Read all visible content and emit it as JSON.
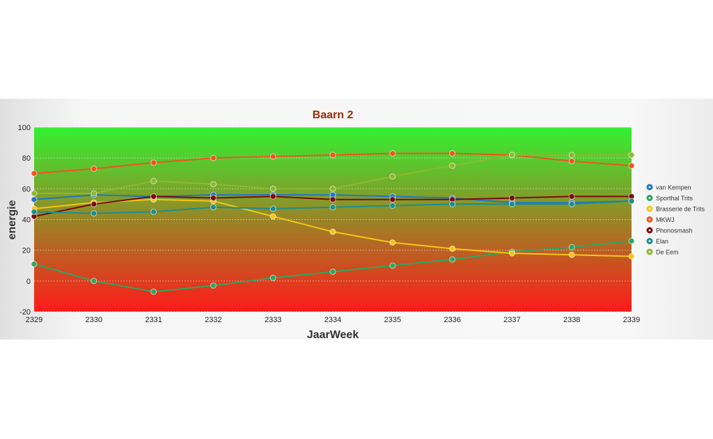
{
  "chart_data": {
    "type": "line",
    "title": "Baarn 2",
    "xlabel": "JaarWeek",
    "ylabel": "energie",
    "ylim": [
      -20,
      100
    ],
    "yticks": [
      -20,
      0,
      20,
      40,
      60,
      80,
      100
    ],
    "categories": [
      "2329",
      "2330",
      "2331",
      "2332",
      "2333",
      "2334",
      "2335",
      "2336",
      "2337",
      "2338",
      "2339"
    ],
    "background": {
      "top": "#33f033",
      "bottom": "#ff1a1a"
    },
    "legend_position": "right",
    "series": [
      {
        "name": "van Kempen",
        "color": "#1f77c4",
        "values": [
          53,
          56,
          55,
          56,
          56,
          56,
          55,
          54,
          51,
          51,
          52
        ]
      },
      {
        "name": "Sporthal Trits",
        "color": "#2aa860",
        "values": [
          11,
          0,
          -7,
          -3,
          2,
          6,
          10,
          14,
          19,
          22,
          26
        ]
      },
      {
        "name": "Brasserie de Trits",
        "color": "#f5c518",
        "values": [
          47,
          51,
          53,
          52,
          42,
          32,
          25,
          21,
          18,
          17,
          16
        ]
      },
      {
        "name": "MKWJ",
        "color": "#f0541e",
        "values": [
          70,
          73,
          77,
          80,
          81,
          82,
          83,
          83,
          82,
          78,
          75
        ]
      },
      {
        "name": "Phonosmash",
        "color": "#7a0c0c",
        "values": [
          42,
          50,
          55,
          54,
          55,
          53,
          53,
          53,
          54,
          55,
          55
        ]
      },
      {
        "name": "Elan",
        "color": "#1e8c8c",
        "values": [
          45,
          44,
          45,
          48,
          47,
          48,
          49,
          50,
          50,
          50,
          52
        ]
      },
      {
        "name": "De Eem",
        "color": "#8fb830",
        "values": [
          57,
          57,
          65,
          63,
          60,
          60,
          68,
          75,
          82,
          82,
          82
        ]
      }
    ]
  }
}
